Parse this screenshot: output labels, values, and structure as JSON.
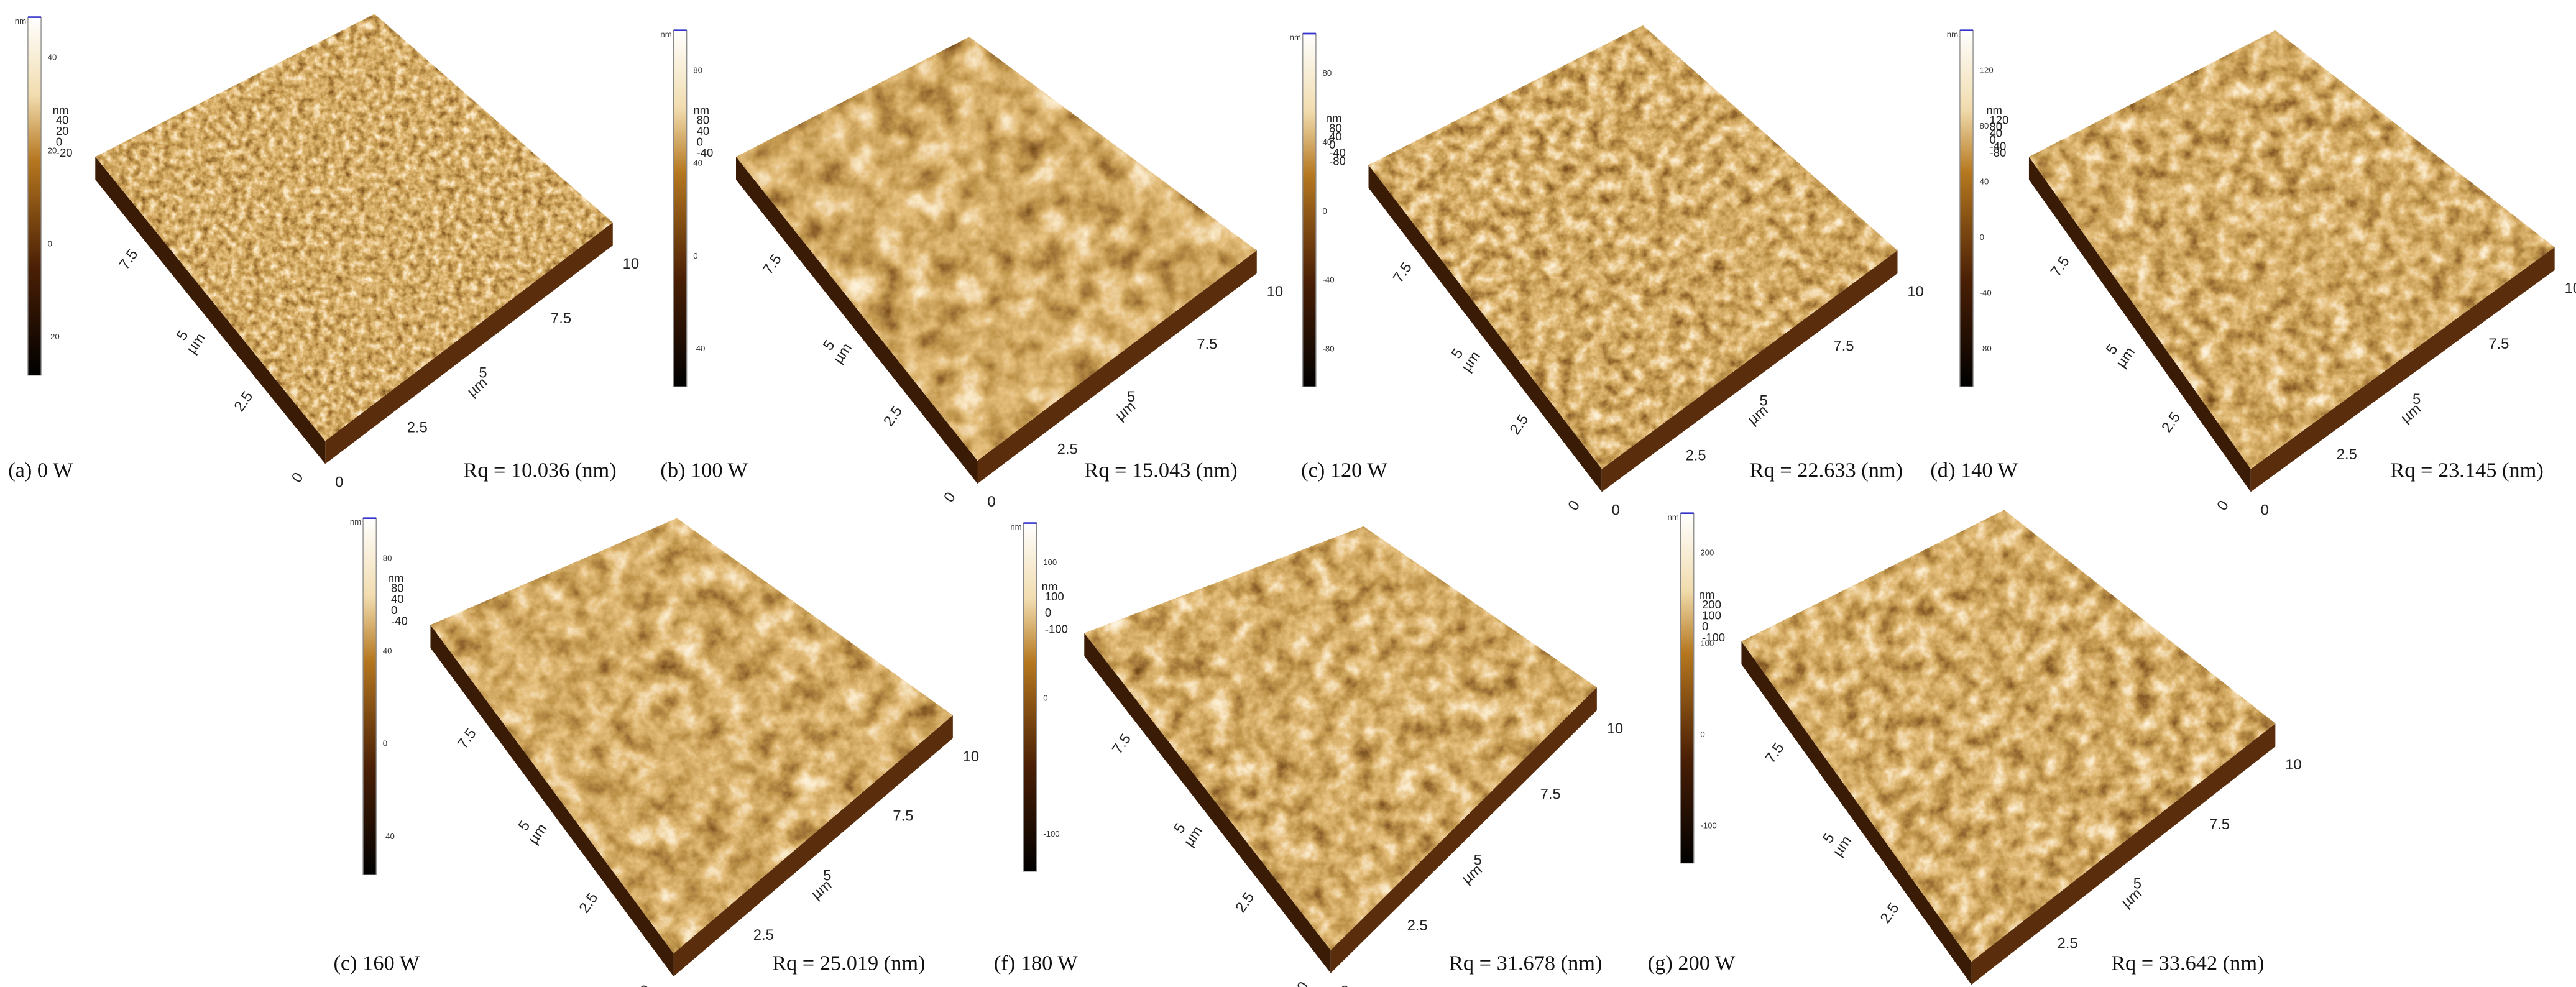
{
  "axis": {
    "ticks": [
      "0",
      "2.5",
      "5",
      "7.5",
      "10"
    ],
    "unit": "µm",
    "height_unit": "nm"
  },
  "panels": [
    {
      "caption": "(a) 0 W",
      "rq": "Rq = 10.036 (nm)",
      "colorbar_ticks": [
        40,
        20,
        0,
        -20
      ],
      "z_ticks": [
        40,
        20,
        0,
        -20
      ]
    },
    {
      "caption": "(b) 100 W",
      "rq": "Rq = 15.043 (nm)",
      "colorbar_ticks": [
        80,
        40,
        0,
        -40
      ],
      "z_ticks": [
        80,
        40,
        0,
        -40
      ]
    },
    {
      "caption": "(c) 120 W",
      "rq": "Rq = 22.633 (nm)",
      "colorbar_ticks": [
        80,
        40,
        0,
        -40,
        -80
      ],
      "z_ticks": [
        80,
        40,
        0,
        -40,
        -80
      ]
    },
    {
      "caption": "(d) 140 W",
      "rq": "Rq = 23.145 (nm)",
      "colorbar_ticks": [
        120,
        80,
        40,
        0,
        -40,
        -80
      ],
      "z_ticks": [
        120,
        80,
        40,
        0,
        -40,
        -80
      ]
    },
    {
      "caption": "(c) 160 W",
      "rq": "Rq = 25.019 (nm)",
      "colorbar_ticks": [
        80,
        40,
        0,
        -40
      ],
      "z_ticks": [
        80,
        40,
        0,
        -40
      ]
    },
    {
      "caption": "(f) 180 W",
      "rq": "Rq = 31.678 (nm)",
      "colorbar_ticks": [
        100,
        0,
        -100
      ],
      "z_ticks": [
        100,
        0,
        -100
      ]
    },
    {
      "caption": "(g) 200 W",
      "rq": "Rq = 33.642 (nm)",
      "colorbar_ticks": [
        200,
        100,
        0,
        -100
      ],
      "z_ticks": [
        200,
        100,
        0,
        -100
      ]
    }
  ]
}
